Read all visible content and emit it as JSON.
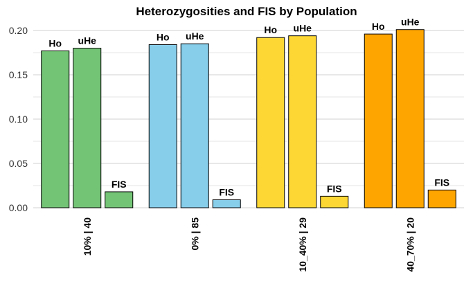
{
  "chart_data": {
    "type": "bar",
    "title": "Heterozygosities and FIS by Population",
    "xlabel": "",
    "ylabel": "",
    "categories": [
      "10% | 40",
      "0% | 85",
      "10_40% | 29",
      "40_70% | 20"
    ],
    "colors": [
      "#74c476",
      "#87ceeb",
      "#fdd835",
      "#ffa500"
    ],
    "series": [
      {
        "name": "Ho",
        "values": [
          0.177,
          0.184,
          0.192,
          0.196
        ]
      },
      {
        "name": "uHe",
        "values": [
          0.18,
          0.185,
          0.194,
          0.201
        ]
      },
      {
        "name": "FIS",
        "values": [
          0.018,
          0.009,
          0.013,
          0.02
        ]
      }
    ],
    "ylim": [
      0,
      0.2
    ],
    "yticks": [
      "0.00",
      "0.05",
      "0.10",
      "0.15",
      "0.20"
    ],
    "grid": true,
    "legend": "none"
  }
}
